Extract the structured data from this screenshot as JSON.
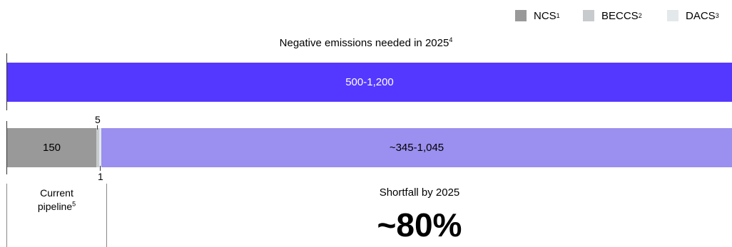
{
  "legend": [
    {
      "label": "NCS",
      "sup": "1",
      "color": "#999999"
    },
    {
      "label": "BECCS",
      "sup": "2",
      "color": "#c8cbcd"
    },
    {
      "label": "DACS",
      "sup": "3",
      "color": "#e3e8ea"
    }
  ],
  "title": {
    "text": "Negative emissions needed in 2025",
    "sup": "4"
  },
  "colors": {
    "needed": "#5538ff",
    "shortfall": "#9b8fef",
    "ncs": "#999999",
    "beccs": "#c8cbcd",
    "dacs": "#e3e8ea"
  },
  "chart_data": {
    "type": "bar",
    "orientation": "horizontal",
    "bars": [
      {
        "name": "Negative emissions needed in 2025",
        "label": "500-1,200",
        "range": [
          500,
          1200
        ]
      },
      {
        "name": "Current pipeline vs shortfall",
        "segments": [
          {
            "series": "NCS",
            "value": 150,
            "label": "150"
          },
          {
            "series": "BECCS",
            "value": 5,
            "label": "5"
          },
          {
            "series": "DACS",
            "value": 1,
            "label": "1"
          },
          {
            "series": "Shortfall",
            "range": [
              345,
              1045
            ],
            "label": "~345-1,045"
          }
        ]
      }
    ]
  },
  "annotations": {
    "pipeline_label": "Current",
    "pipeline_label2": "pipeline",
    "pipeline_sup": "5",
    "shortfall_label": "Shortfall by 2025",
    "shortfall_pct": "~80%"
  }
}
